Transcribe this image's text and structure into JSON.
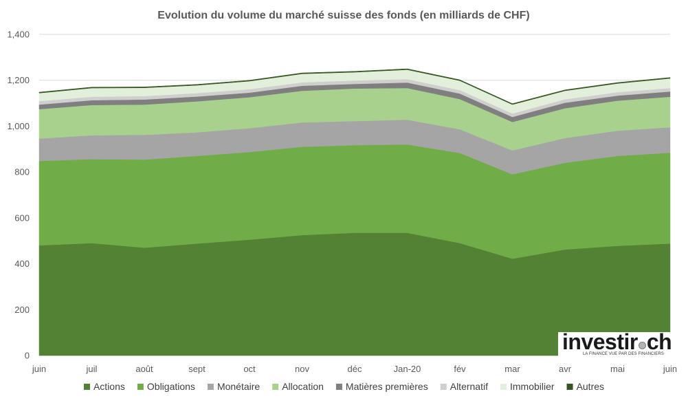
{
  "chart_data": {
    "type": "area",
    "stacked": true,
    "title": "Evolution du volume du marché suisse des fonds (en milliards de CHF)",
    "xlabel": "",
    "ylabel": "",
    "categories": [
      "juin",
      "juil",
      "août",
      "sept",
      "oct",
      "nov",
      "déc",
      "Jan-20",
      "fév",
      "mar",
      "avr",
      "mai",
      "juin"
    ],
    "ylim": [
      0,
      1400
    ],
    "yticks": [
      0,
      200,
      400,
      600,
      800,
      1000,
      1200,
      1400
    ],
    "ytick_labels": [
      "0",
      "200",
      "400",
      "600",
      "800",
      "1,000",
      "1,200",
      "1,400"
    ],
    "grid": true,
    "legend_position": "bottom",
    "series": [
      {
        "name": "Actions",
        "color": "#548235",
        "values": [
          480,
          490,
          470,
          488,
          505,
          525,
          535,
          535,
          490,
          422,
          462,
          478,
          488
        ]
      },
      {
        "name": "Obligations",
        "color": "#70ad47",
        "values": [
          368,
          366,
          384,
          382,
          382,
          385,
          382,
          385,
          393,
          368,
          378,
          392,
          396
        ]
      },
      {
        "name": "Monétaire",
        "color": "#a5a5a5",
        "values": [
          98,
          104,
          108,
          103,
          104,
          106,
          105,
          108,
          103,
          104,
          108,
          110,
          111
        ]
      },
      {
        "name": "Allocation",
        "color": "#a9d18e",
        "values": [
          128,
          132,
          132,
          135,
          135,
          138,
          142,
          138,
          132,
          124,
          130,
          131,
          133
        ]
      },
      {
        "name": "Matières premières",
        "color": "#7f7f7f",
        "values": [
          20,
          21,
          22,
          21,
          20,
          22,
          20,
          24,
          24,
          22,
          24,
          22,
          23
        ]
      },
      {
        "name": "Alternatif",
        "color": "#d0cece",
        "values": [
          15,
          15,
          15,
          15,
          15,
          15,
          15,
          15,
          15,
          15,
          15,
          15,
          15
        ]
      },
      {
        "name": "Immobilier",
        "color": "#e2efda",
        "values": [
          35,
          38,
          36,
          34,
          35,
          37,
          36,
          41,
          41,
          39,
          37,
          38,
          42
        ]
      },
      {
        "name": "Autres",
        "color": "#375623",
        "values": [
          4,
          4,
          4,
          4,
          4,
          4,
          4,
          4,
          4,
          4,
          4,
          4,
          4
        ]
      }
    ]
  },
  "logo": {
    "text_before": "investir",
    "text_after": "ch",
    "tagline": "LA FINANCE VUE PAR DES FINANCIERS"
  }
}
